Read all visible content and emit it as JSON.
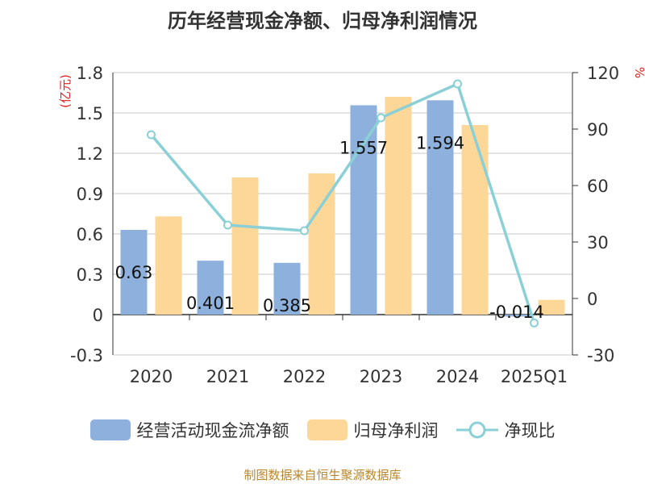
{
  "chart_data": {
    "type": "bar",
    "title": "历年经营现金净额、归母净利润情况",
    "categories": [
      "2020",
      "2021",
      "2022",
      "2023",
      "2024",
      "2025Q1"
    ],
    "series": [
      {
        "name": "经营活动现金流净额",
        "type": "bar",
        "axis": "left",
        "color": "#8eb0dc",
        "values": [
          0.63,
          0.401,
          0.385,
          1.557,
          1.594,
          -0.014
        ],
        "labels": [
          "0.63",
          "0.401",
          "0.385",
          "1.557",
          "1.594",
          "-0.014"
        ]
      },
      {
        "name": "归母净利润",
        "type": "bar",
        "axis": "left",
        "color": "#fdd797",
        "values": [
          0.73,
          1.02,
          1.05,
          1.62,
          1.41,
          0.11
        ]
      },
      {
        "name": "净现比",
        "type": "line",
        "axis": "right",
        "color": "#8ad0d6",
        "values": [
          87,
          39,
          36,
          96,
          114,
          -13
        ]
      }
    ],
    "left_axis": {
      "label": "(亿元)",
      "min": -0.3,
      "max": 1.8,
      "ticks": [
        -0.3,
        0,
        0.3,
        0.6,
        0.9,
        1.2,
        1.5,
        1.8
      ]
    },
    "right_axis": {
      "label": "%",
      "min": -30,
      "max": 120,
      "ticks": [
        -30,
        0,
        30,
        60,
        90,
        120
      ]
    },
    "grid": true,
    "legend_position": "bottom"
  },
  "source": "制图数据来自恒生聚源数据库"
}
